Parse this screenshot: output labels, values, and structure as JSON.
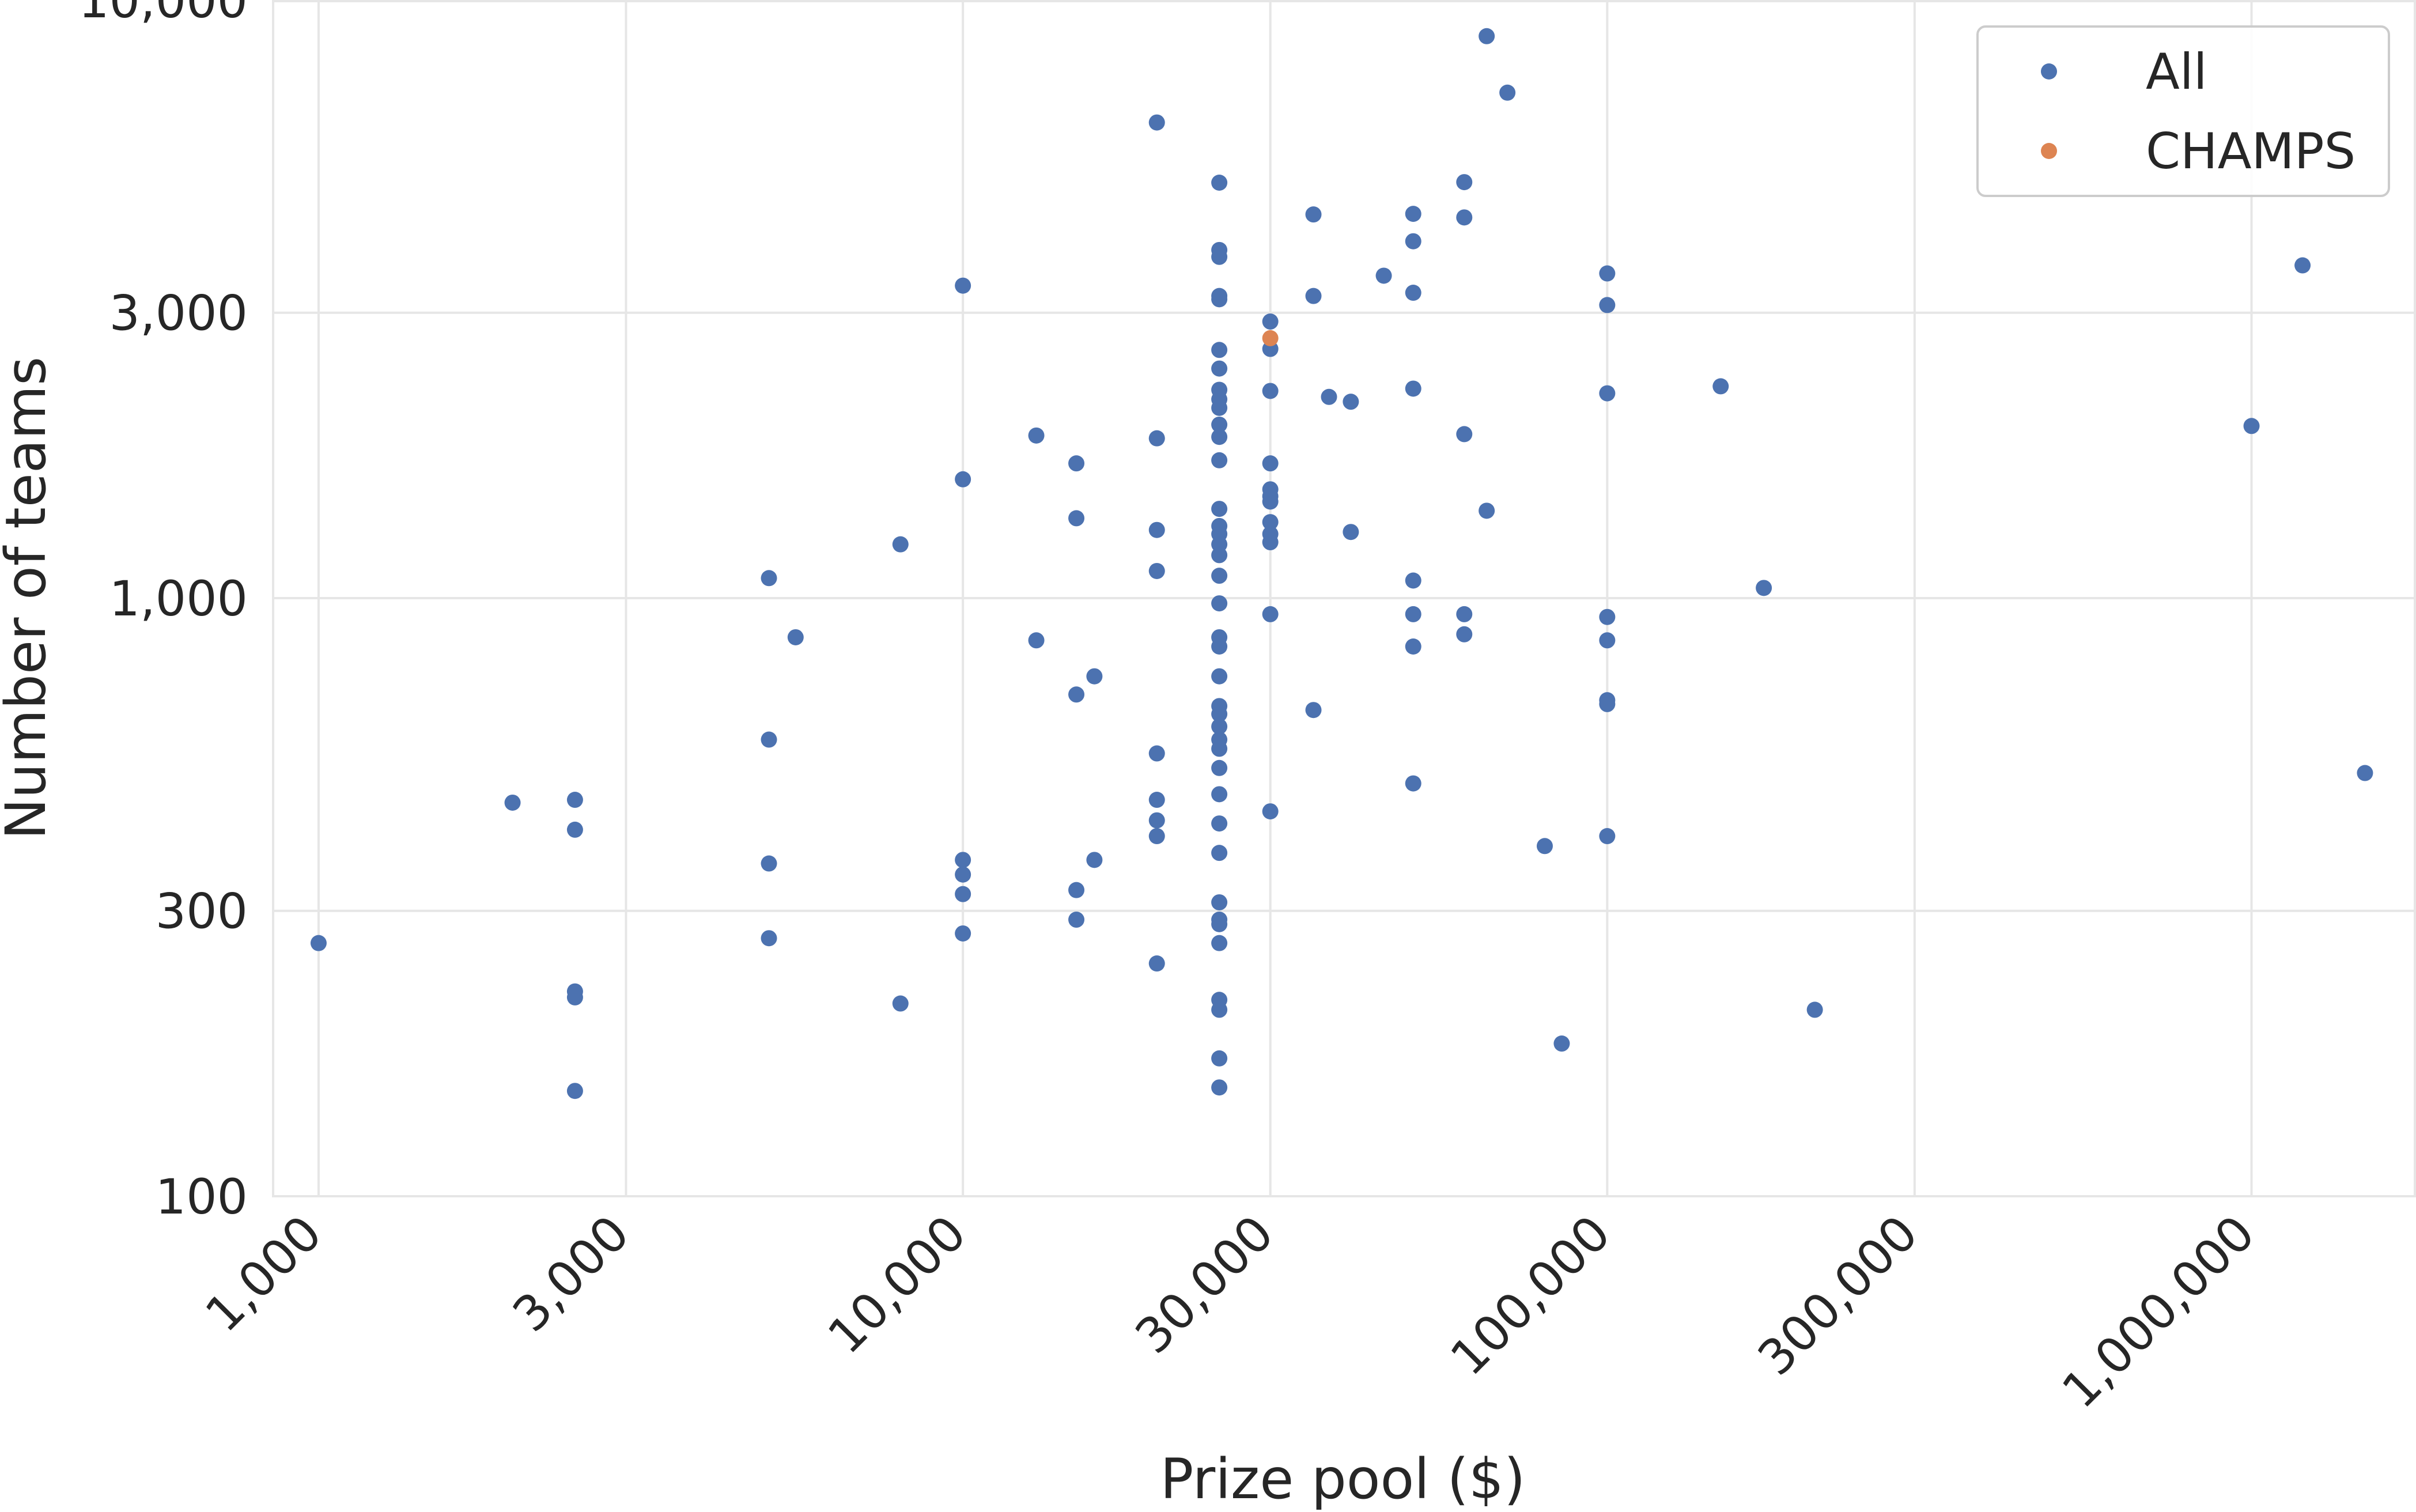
{
  "chart_data": {
    "type": "scatter",
    "xlabel": "Prize pool ($)",
    "ylabel": "Number of teams",
    "xscale": "log",
    "yscale": "log",
    "xlim": [
      850,
      1800000
    ],
    "ylim": [
      100,
      10000
    ],
    "x_ticks": [
      {
        "value": 1000,
        "label": "1,000"
      },
      {
        "value": 3000,
        "label": "3,000"
      },
      {
        "value": 10000,
        "label": "10,000"
      },
      {
        "value": 30000,
        "label": "30,000"
      },
      {
        "value": 100000,
        "label": "100,000"
      },
      {
        "value": 300000,
        "label": "300,000"
      },
      {
        "value": 1000000,
        "label": "1,000,000"
      }
    ],
    "y_ticks": [
      {
        "value": 100,
        "label": "100"
      },
      {
        "value": 300,
        "label": "300"
      },
      {
        "value": 1000,
        "label": "1,000"
      },
      {
        "value": 3000,
        "label": "3,000"
      },
      {
        "value": 10000,
        "label": "10,000"
      }
    ],
    "grid": true,
    "legend": {
      "position": "upper-right",
      "entries": [
        {
          "name": "All",
          "color": "#4c72b0"
        },
        {
          "name": "CHAMPS",
          "color": "#dd8452"
        }
      ]
    },
    "series": [
      {
        "name": "All",
        "color": "#4c72b0",
        "points": [
          [
            1000,
            265
          ],
          [
            2000,
            455
          ],
          [
            2500,
            460
          ],
          [
            2500,
            410
          ],
          [
            2500,
            220
          ],
          [
            2500,
            215
          ],
          [
            2500,
            150
          ],
          [
            5000,
            1080
          ],
          [
            5000,
            580
          ],
          [
            5000,
            360
          ],
          [
            5000,
            270
          ],
          [
            5500,
            860
          ],
          [
            8000,
            1230
          ],
          [
            8000,
            210
          ],
          [
            10000,
            3330
          ],
          [
            10000,
            1580
          ],
          [
            10000,
            365
          ],
          [
            10000,
            345
          ],
          [
            10000,
            320
          ],
          [
            10000,
            275
          ],
          [
            13000,
            1870
          ],
          [
            13000,
            850
          ],
          [
            15000,
            1680
          ],
          [
            15000,
            1360
          ],
          [
            15000,
            690
          ],
          [
            15000,
            325
          ],
          [
            15000,
            290
          ],
          [
            16000,
            740
          ],
          [
            16000,
            365
          ],
          [
            20000,
            6240
          ],
          [
            20000,
            1850
          ],
          [
            20000,
            1300
          ],
          [
            20000,
            1110
          ],
          [
            20000,
            550
          ],
          [
            20000,
            460
          ],
          [
            20000,
            425
          ],
          [
            20000,
            400
          ],
          [
            20000,
            245
          ],
          [
            25000,
            4950
          ],
          [
            25000,
            3820
          ],
          [
            25000,
            3720
          ],
          [
            25000,
            3200
          ],
          [
            25000,
            3160
          ],
          [
            25000,
            2600
          ],
          [
            25000,
            2420
          ],
          [
            25000,
            2230
          ],
          [
            25000,
            2150
          ],
          [
            25000,
            2080
          ],
          [
            25000,
            1950
          ],
          [
            25000,
            1860
          ],
          [
            25000,
            1700
          ],
          [
            25000,
            1410
          ],
          [
            25000,
            1320
          ],
          [
            25000,
            1280
          ],
          [
            25000,
            1230
          ],
          [
            25000,
            1180
          ],
          [
            25000,
            1090
          ],
          [
            25000,
            980
          ],
          [
            25000,
            860
          ],
          [
            25000,
            830
          ],
          [
            25000,
            740
          ],
          [
            25000,
            660
          ],
          [
            25000,
            640
          ],
          [
            25000,
            610
          ],
          [
            25000,
            580
          ],
          [
            25000,
            560
          ],
          [
            25000,
            520
          ],
          [
            25000,
            470
          ],
          [
            25000,
            420
          ],
          [
            25000,
            375
          ],
          [
            25000,
            310
          ],
          [
            25000,
            290
          ],
          [
            25000,
            285
          ],
          [
            25000,
            265
          ],
          [
            25000,
            213
          ],
          [
            25000,
            205
          ],
          [
            25000,
            170
          ],
          [
            25000,
            152
          ],
          [
            30000,
            2900
          ],
          [
            30000,
            2610
          ],
          [
            30000,
            2220
          ],
          [
            30000,
            1680
          ],
          [
            30000,
            1520
          ],
          [
            30000,
            1480
          ],
          [
            30000,
            1450
          ],
          [
            30000,
            1340
          ],
          [
            30000,
            1280
          ],
          [
            30000,
            1240
          ],
          [
            30000,
            940
          ],
          [
            30000,
            440
          ],
          [
            35000,
            4380
          ],
          [
            35000,
            3200
          ],
          [
            35000,
            650
          ],
          [
            37000,
            2170
          ],
          [
            40000,
            2130
          ],
          [
            40000,
            1290
          ],
          [
            45000,
            3460
          ],
          [
            50000,
            4390
          ],
          [
            50000,
            3950
          ],
          [
            50000,
            3240
          ],
          [
            50000,
            2240
          ],
          [
            50000,
            1070
          ],
          [
            50000,
            940
          ],
          [
            50000,
            830
          ],
          [
            50000,
            490
          ],
          [
            60000,
            4960
          ],
          [
            60000,
            4330
          ],
          [
            60000,
            1880
          ],
          [
            60000,
            940
          ],
          [
            60000,
            870
          ],
          [
            65000,
            8700
          ],
          [
            65000,
            1400
          ],
          [
            70000,
            7000
          ],
          [
            80000,
            385
          ],
          [
            85000,
            180
          ],
          [
            100000,
            3490
          ],
          [
            100000,
            3090
          ],
          [
            100000,
            2200
          ],
          [
            100000,
            930
          ],
          [
            100000,
            850
          ],
          [
            100000,
            675
          ],
          [
            100000,
            665
          ],
          [
            100000,
            400
          ],
          [
            150000,
            2260
          ],
          [
            175000,
            1040
          ],
          [
            210000,
            205
          ],
          [
            1000000,
            1940
          ],
          [
            1200000,
            3600
          ],
          [
            1500000,
            510
          ]
        ]
      },
      {
        "name": "CHAMPS",
        "color": "#dd8452",
        "points": [
          [
            30000,
            2720
          ]
        ]
      }
    ]
  }
}
